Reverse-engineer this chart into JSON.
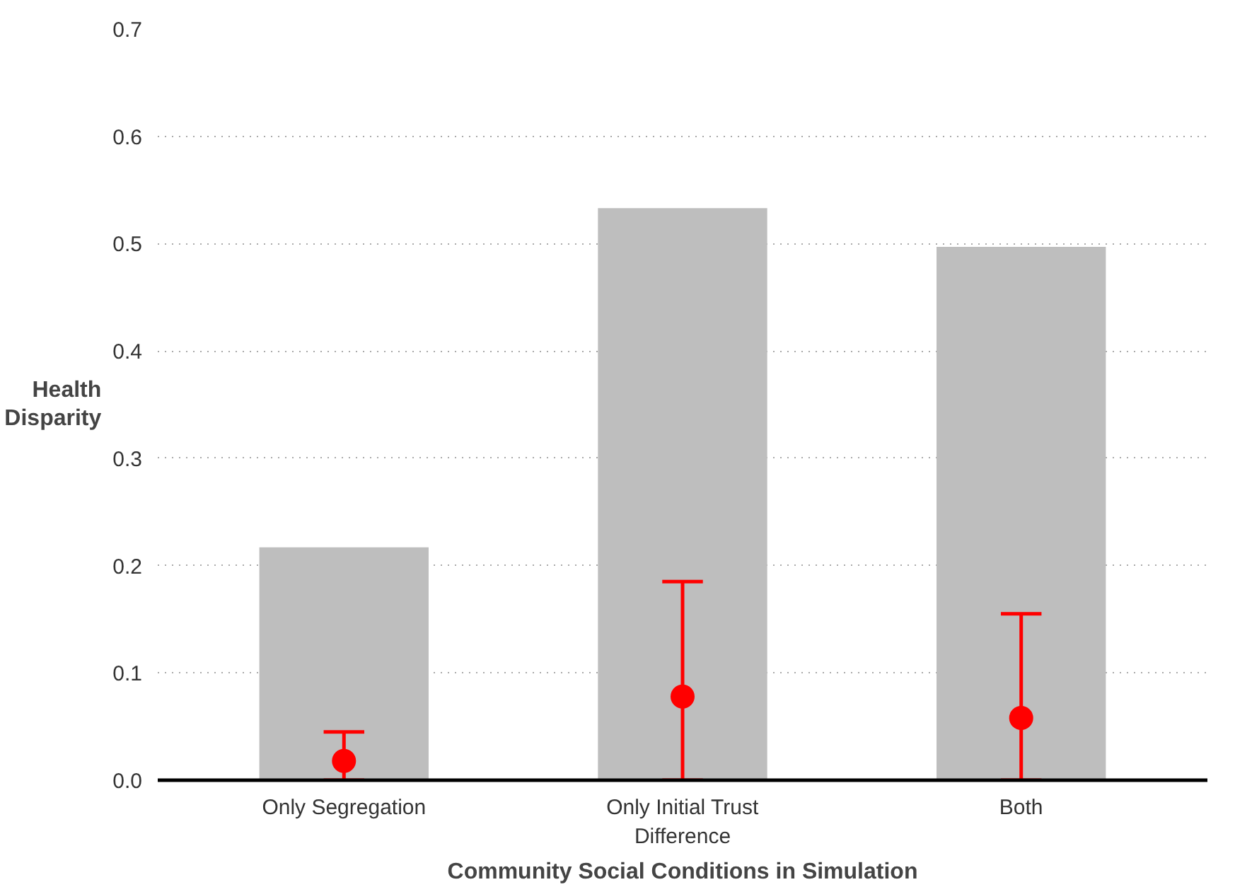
{
  "chart_data": {
    "type": "bar",
    "xlabel": "Community Social Conditions in Simulation",
    "ylabel": "Health Disparity",
    "categories": [
      "Only Segregation",
      "Only Initial Trust Difference",
      "Both"
    ],
    "series": [
      {
        "color": "#bebebe",
        "values": [
          0.217,
          0.533,
          0.497
        ]
      },
      {
        "type": "scatter",
        "color": "#ff0000",
        "x": [
          "Only Segregation",
          "Only Initial Trust Difference",
          "Both"
        ],
        "values": [
          0.018,
          0.078,
          0.058
        ],
        "errors": [
          [
            0,
            0.045
          ],
          [
            0,
            0.185
          ],
          [
            0,
            0.155
          ]
        ]
      }
    ],
    "ylim": [
      0,
      0.7
    ],
    "yticks": [
      {
        "value": 0,
        "label": "0.0"
      },
      0.1,
      0.2,
      0.3,
      0.4,
      0.5,
      0.6,
      0.7
    ],
    "grid": "y",
    "marker": "circle"
  }
}
